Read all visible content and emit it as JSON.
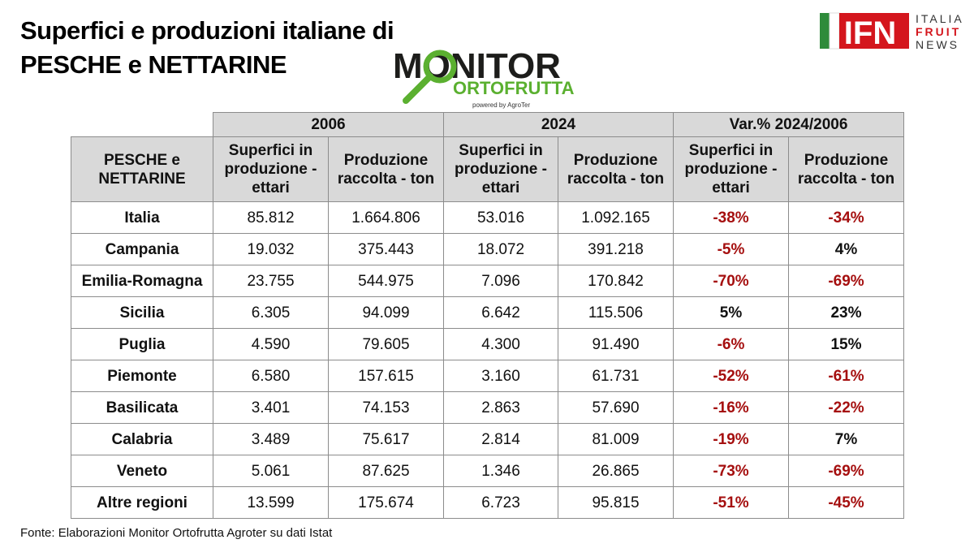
{
  "header": {
    "title": [
      "Superfici e produzioni italiane di",
      "PESCHE e NETTARINE"
    ]
  },
  "logos": {
    "monitor": {
      "title": "MONITOR",
      "subtitle": "ORTOFRUTTA",
      "powered": "powered by AgroTer"
    },
    "ifn": {
      "mark": "IFN",
      "lines": [
        "ITALIA",
        "FRUIT",
        "NEWS"
      ]
    }
  },
  "table": {
    "groups": [
      "2006",
      "2024",
      "Var.% 2024/2006"
    ],
    "row_header": "PESCHE e NETTARINE",
    "columns": [
      "Superfici in produzione - ettari",
      "Produzione raccolta - ton",
      "Superfici in produzione - ettari",
      "Produzione raccolta - ton",
      "Superfici in produzione - ettari",
      "Produzione raccolta - ton"
    ],
    "rows": [
      [
        "Italia",
        "85.812",
        "1.664.806",
        "53.016",
        "1.092.165",
        "-38%",
        "-34%"
      ],
      [
        "Campania",
        "19.032",
        "375.443",
        "18.072",
        "391.218",
        "-5%",
        "4%"
      ],
      [
        "Emilia-Romagna",
        "23.755",
        "544.975",
        "7.096",
        "170.842",
        "-70%",
        "-69%"
      ],
      [
        "Sicilia",
        "6.305",
        "94.099",
        "6.642",
        "115.506",
        "5%",
        "23%"
      ],
      [
        "Puglia",
        "4.590",
        "79.605",
        "4.300",
        "91.490",
        "-6%",
        "15%"
      ],
      [
        "Piemonte",
        "6.580",
        "157.615",
        "3.160",
        "61.731",
        "-52%",
        "-61%"
      ],
      [
        "Basilicata",
        "3.401",
        "74.153",
        "2.863",
        "57.690",
        "-16%",
        "-22%"
      ],
      [
        "Calabria",
        "3.489",
        "75.617",
        "2.814",
        "81.009",
        "-19%",
        "7%"
      ],
      [
        "Veneto",
        "5.061",
        "87.625",
        "1.346",
        "26.865",
        "-73%",
        "-69%"
      ],
      [
        "Altre regioni",
        "13.599",
        "175.674",
        "6.723",
        "95.815",
        "-51%",
        "-45%"
      ]
    ]
  },
  "footer": {
    "source": "Fonte: Elaborazioni Monitor Ortofrutta Agroter su dati Istat"
  }
}
